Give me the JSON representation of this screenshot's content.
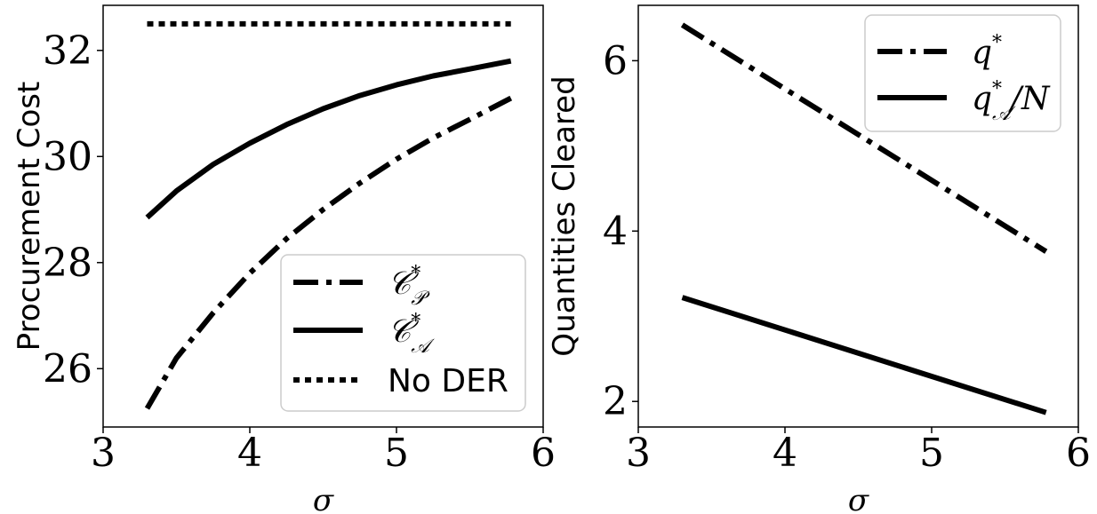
{
  "chart_data": [
    {
      "type": "line",
      "xlabel": "σ",
      "ylabel": "Procurement Cost",
      "xlim": [
        3,
        6
      ],
      "ylim": [
        24.9,
        32.85
      ],
      "xticks": [
        3,
        4,
        5,
        6
      ],
      "yticks": [
        26,
        28,
        30,
        32
      ],
      "grid": false,
      "legend_position": "lower-right",
      "series": [
        {
          "name_main": "𝒞",
          "name_sup": "*",
          "name_sub": "𝒫",
          "style": "dashdot",
          "color": "#000000",
          "x": [
            3.3,
            3.5,
            3.75,
            4.0,
            4.25,
            4.5,
            4.75,
            5.0,
            5.25,
            5.5,
            5.78
          ],
          "y": [
            25.25,
            26.2,
            27.05,
            27.8,
            28.45,
            29.0,
            29.5,
            29.95,
            30.35,
            30.7,
            31.1
          ]
        },
        {
          "name_main": "𝒞",
          "name_sup": "*",
          "name_sub": "𝒜",
          "style": "solid",
          "color": "#000000",
          "x": [
            3.3,
            3.5,
            3.75,
            4.0,
            4.25,
            4.5,
            4.75,
            5.0,
            5.25,
            5.5,
            5.78
          ],
          "y": [
            28.85,
            29.35,
            29.85,
            30.25,
            30.6,
            30.9,
            31.15,
            31.35,
            31.52,
            31.65,
            31.8
          ]
        },
        {
          "name_main": "No DER",
          "style": "dotted",
          "color": "#000000",
          "x": [
            3.3,
            5.78
          ],
          "y": [
            32.5,
            32.5
          ]
        }
      ]
    },
    {
      "type": "line",
      "xlabel": "σ",
      "ylabel": "Quantities Cleared",
      "xlim": [
        3,
        6
      ],
      "ylim": [
        1.7,
        6.65
      ],
      "xticks": [
        3,
        4,
        5,
        6
      ],
      "yticks": [
        2,
        4,
        6
      ],
      "grid": false,
      "legend_position": "upper-right",
      "series": [
        {
          "name_main": "q",
          "name_sup": "*",
          "style": "dashdot",
          "color": "#000000",
          "x": [
            3.3,
            5.78
          ],
          "y": [
            6.42,
            3.76
          ]
        },
        {
          "name_main": "q",
          "name_sup": "*",
          "name_sub": "𝒜",
          "name_tail": "/N",
          "style": "solid",
          "color": "#000000",
          "x": [
            3.3,
            5.78
          ],
          "y": [
            3.22,
            1.87
          ]
        }
      ]
    }
  ]
}
